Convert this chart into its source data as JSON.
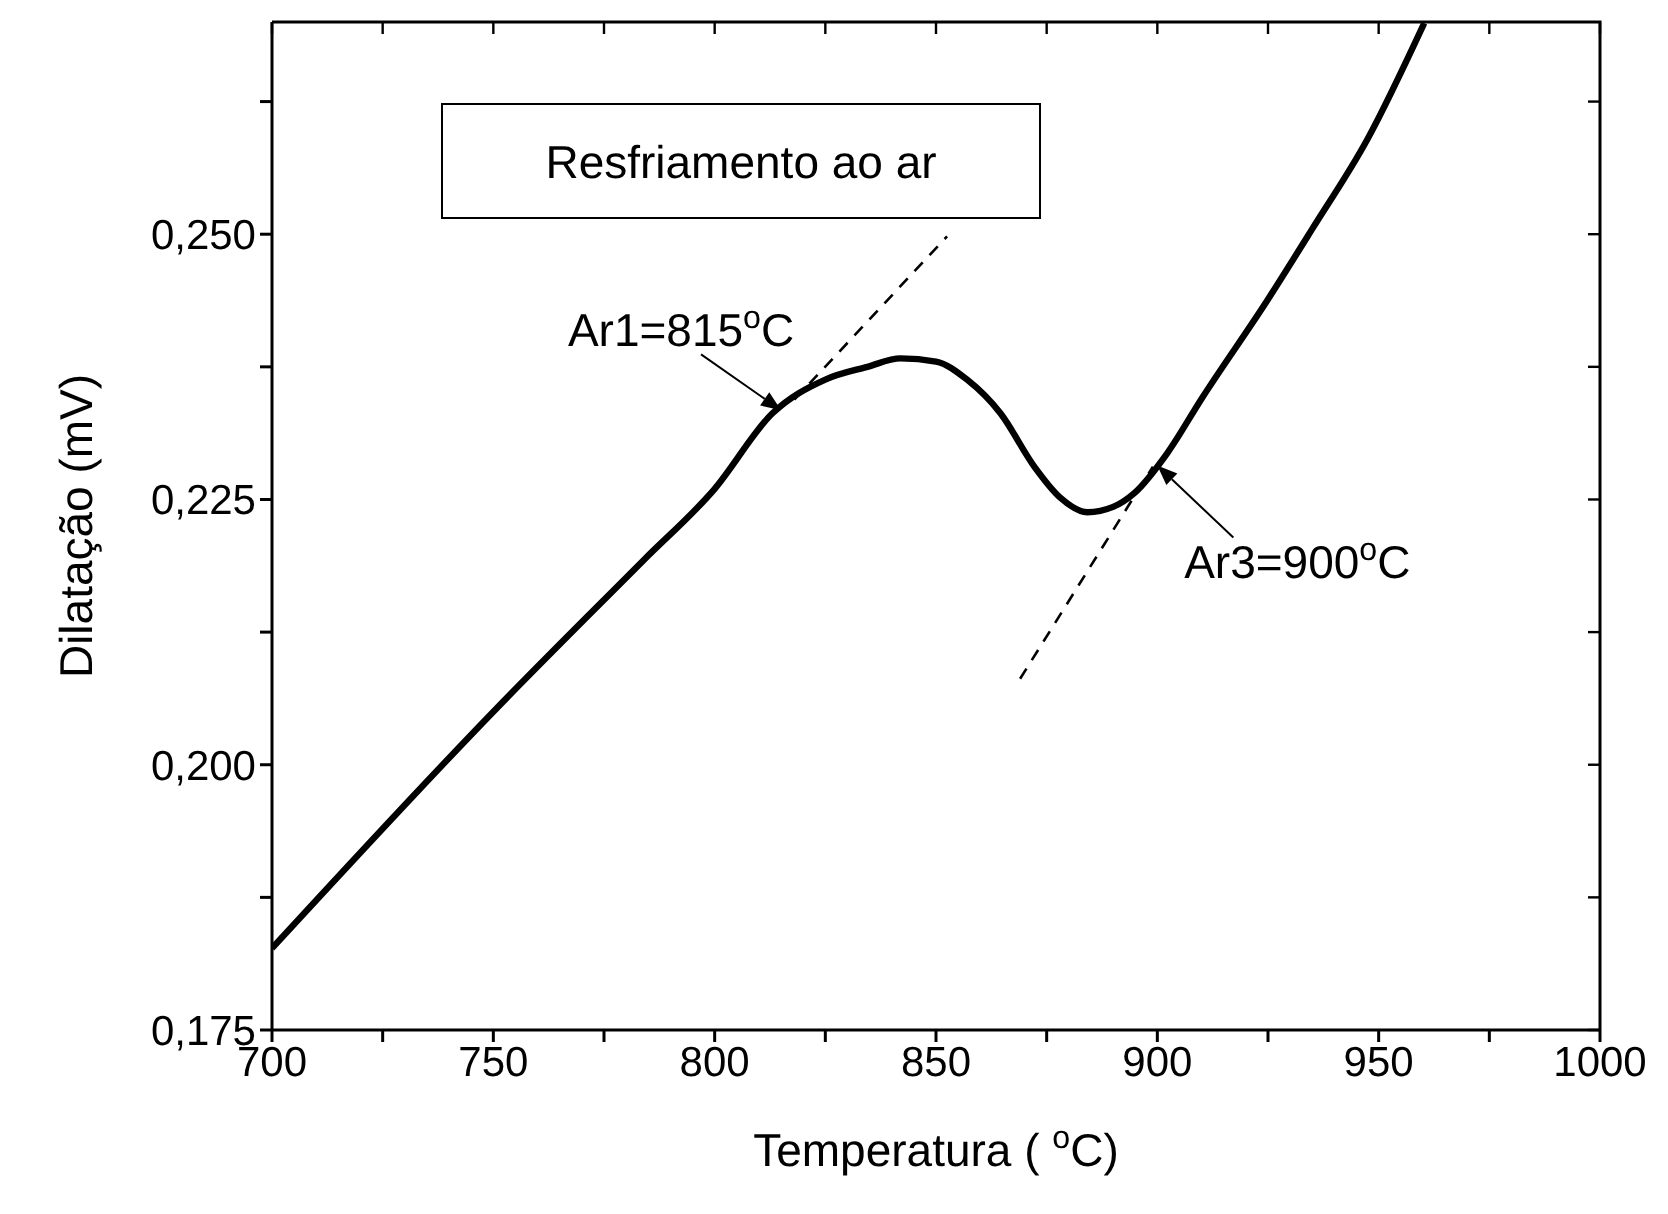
{
  "chart_data": {
    "type": "line",
    "xlabel": "Temperatura ( $^{o}$C)",
    "ylabel": "Dilatação (mV)",
    "xlim": [
      700,
      1000
    ],
    "xticks": [
      700,
      {
        "value": 725,
        "label": null
      },
      750,
      {
        "value": 775,
        "label": null
      },
      800,
      {
        "value": 825,
        "label": null
      },
      850,
      {
        "value": 875,
        "label": null
      },
      900,
      {
        "value": 925,
        "label": null
      },
      950,
      {
        "value": 975,
        "label": null
      },
      1000
    ],
    "ylim": [
      0.175,
      0.27
    ],
    "yticks": [
      {
        "value": 0.175,
        "label": "0,175"
      },
      {
        "value": 0.1875,
        "label": null
      },
      {
        "value": 0.2,
        "label": "0,200"
      },
      {
        "value": 0.2125,
        "label": null
      },
      {
        "value": 0.225,
        "label": "0,225"
      },
      {
        "value": 0.2375,
        "label": null
      },
      {
        "value": 0.25,
        "label": "0,250"
      },
      {
        "value": 0.2625,
        "label": null
      }
    ],
    "marker": "none",
    "series": [
      {
        "color": "#000000",
        "line_style": "solid",
        "x": [
          700,
          750,
          784,
          800,
          813,
          825,
          834.5,
          842,
          850,
          857,
          864.6,
          872.2,
          878,
          884.2,
          890,
          894.8,
          902.3,
          910,
          924.9,
          935,
          947.4,
          960.3
        ],
        "values": [
          0.1827,
          0.205,
          0.2193,
          0.226,
          0.2331,
          0.2363,
          0.2375,
          0.2383,
          0.238,
          0.2363,
          0.2331,
          0.2281,
          0.2252,
          0.2238,
          0.2243,
          0.2256,
          0.2294,
          0.2345,
          0.2438,
          0.2505,
          0.2589,
          0.2699
        ]
      },
      {
        "type": "line",
        "color": "#000000",
        "line_style": "dashed",
        "x": [
          818,
          852.5
        ],
        "values": [
          0.2344,
          0.2498
        ]
      },
      {
        "type": "line",
        "color": "#000000",
        "line_style": "dashed",
        "x": [
          869,
          899
        ],
        "values": [
          0.2081,
          0.2281
        ]
      }
    ],
    "annotations": [
      "Resfriamento ao ar",
      {
        "text": "Ar1=815$^{o}$C",
        "x": 815,
        "y": 0.2334
      },
      {
        "text": "Ar3=900$^{o}$C",
        "x": 900,
        "y": 0.2282
      }
    ]
  }
}
